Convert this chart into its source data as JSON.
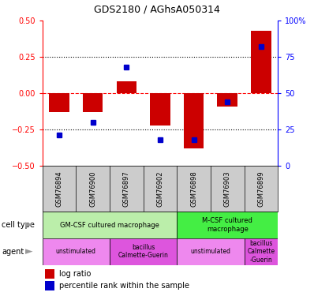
{
  "title": "GDS2180 / AGhsA050314",
  "samples": [
    "GSM76894",
    "GSM76900",
    "GSM76897",
    "GSM76902",
    "GSM76898",
    "GSM76903",
    "GSM76899"
  ],
  "log_ratio": [
    -0.13,
    -0.13,
    0.08,
    -0.22,
    -0.38,
    -0.09,
    0.43
  ],
  "percentile_rank": [
    21,
    30,
    68,
    18,
    18,
    44,
    82
  ],
  "ylim": [
    -0.5,
    0.5
  ],
  "yticks_left": [
    -0.5,
    -0.25,
    0.0,
    0.25,
    0.5
  ],
  "yticks_right": [
    0,
    25,
    50,
    75,
    100
  ],
  "bar_color": "#cc0000",
  "dot_color": "#0000cc",
  "cell_type_groups": [
    {
      "label": "GM-CSF cultured macrophage",
      "start": 0,
      "end": 3,
      "color": "#bbeeaa"
    },
    {
      "label": "M-CSF cultured\nmacrophage",
      "start": 4,
      "end": 6,
      "color": "#44ee44"
    }
  ],
  "agent_groups": [
    {
      "label": "unstimulated",
      "start": 0,
      "end": 1,
      "color": "#ee88ee"
    },
    {
      "label": "bacillus\nCalmette-Guerin",
      "start": 2,
      "end": 3,
      "color": "#dd55dd"
    },
    {
      "label": "unstimulated",
      "start": 4,
      "end": 5,
      "color": "#ee88ee"
    },
    {
      "label": "bacillus\nCalmette\n-Guerin",
      "start": 6,
      "end": 6,
      "color": "#dd55dd"
    }
  ],
  "legend_items": [
    {
      "label": "log ratio",
      "color": "#cc0000"
    },
    {
      "label": "percentile rank within the sample",
      "color": "#0000cc"
    }
  ],
  "sample_bg": "#cccccc",
  "arrow_color": "#999999"
}
